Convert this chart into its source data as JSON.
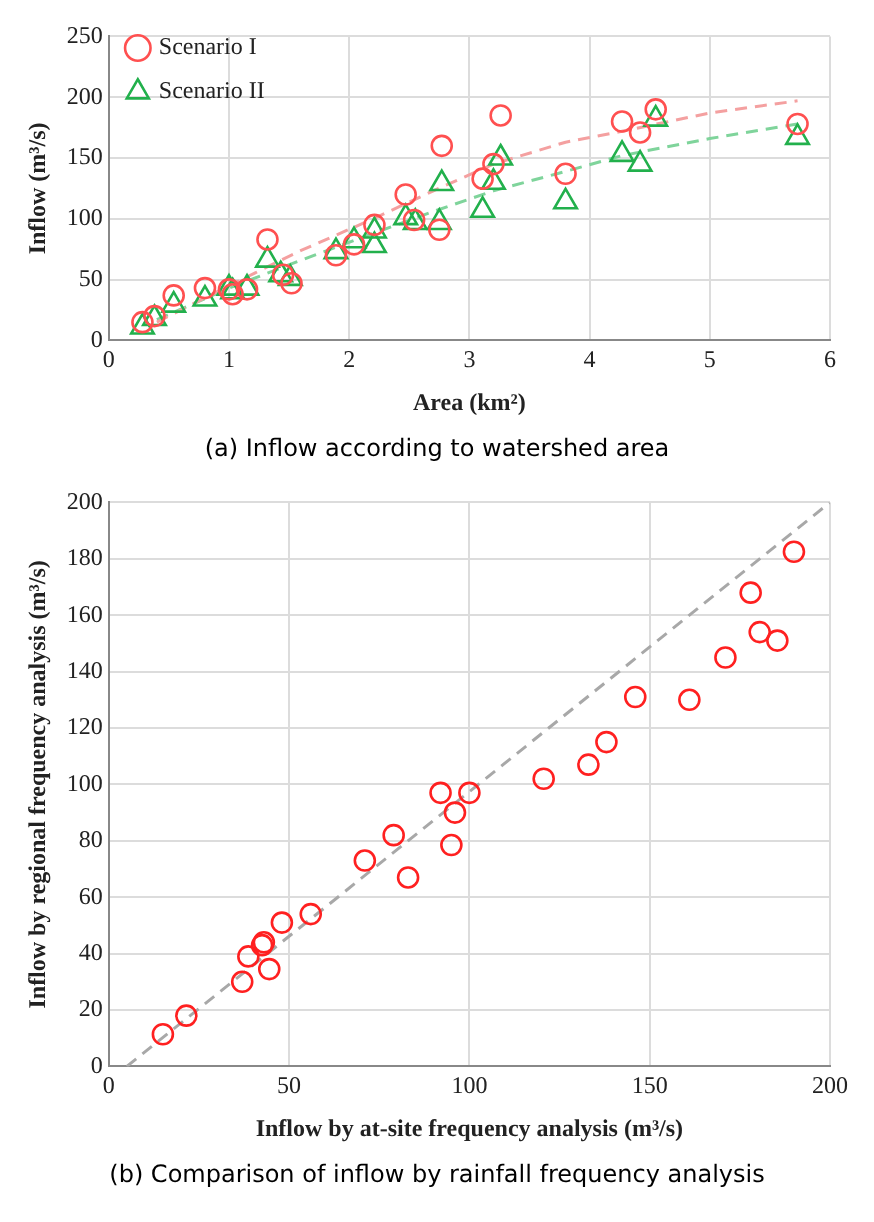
{
  "chart_data": [
    {
      "type": "scatter",
      "xlabel": "Area (km²)",
      "ylabel": "Inflow (m³/s)",
      "xlim": [
        0,
        6
      ],
      "xticks": [
        0,
        1,
        2,
        3,
        4,
        5,
        6
      ],
      "ylim": [
        0,
        250
      ],
      "yticks": [
        0,
        50,
        100,
        150,
        200,
        250
      ],
      "grid": true,
      "legend": "top left",
      "annotations": [
        "(a) Inflow according to watershed area"
      ],
      "series": [
        {
          "name": "Scenario I",
          "color": "#ff5050",
          "marker": "circle",
          "x": [
            0.28,
            0.38,
            0.54,
            0.8,
            1.0,
            1.03,
            1.15,
            1.32,
            1.45,
            1.52,
            1.89,
            2.04,
            2.21,
            2.47,
            2.54,
            2.75,
            2.77,
            3.11,
            3.2,
            3.26,
            3.8,
            4.27,
            4.42,
            4.55,
            5.73
          ],
          "values": [
            15,
            20,
            37,
            43,
            42,
            38,
            42,
            83,
            54,
            47,
            70,
            79,
            95,
            120,
            99,
            91,
            160,
            133,
            145,
            185,
            137,
            180,
            171,
            190,
            178
          ]
        },
        {
          "name": "Scenario II",
          "color": "#22b04c",
          "marker": "triangle",
          "x": [
            0.28,
            0.38,
            0.54,
            0.8,
            1.0,
            1.03,
            1.15,
            1.32,
            1.43,
            1.51,
            1.89,
            2.04,
            2.21,
            2.21,
            2.47,
            2.55,
            2.75,
            2.77,
            3.11,
            3.2,
            3.26,
            3.8,
            4.27,
            4.42,
            4.55,
            5.73
          ],
          "values": [
            11,
            18,
            29,
            34,
            43,
            40,
            43,
            66,
            54,
            51,
            73,
            82,
            90,
            78,
            101,
            97,
            97,
            129,
            107,
            130,
            150,
            114,
            153,
            145,
            182,
            167
          ]
        },
        {
          "type": "line",
          "color": "#f4a0a0",
          "marker": "none",
          "line_style": "dashed",
          "x": [
            0.4,
            1,
            1.6,
            2.2,
            2.7,
            3.2,
            3.8,
            4.27,
            5,
            5.73
          ],
          "values": [
            15,
            45,
            74,
            100,
            123,
            145,
            163,
            172,
            187,
            197
          ]
        },
        {
          "type": "line",
          "color": "#7fd49b",
          "marker": "none",
          "line_style": "dashed",
          "x": [
            0.4,
            1,
            1.6,
            2.2,
            2.7,
            3.2,
            3.8,
            4.27,
            5,
            5.73
          ],
          "values": [
            17,
            43,
            66,
            88,
            106,
            123,
            139,
            152,
            166,
            178
          ]
        }
      ]
    },
    {
      "type": "scatter",
      "xlabel": "Inflow by at-site frequency analysis (m³/s)",
      "ylabel": "Inflow by regional frequency analysis (m³/s)",
      "xlim": [
        0,
        200
      ],
      "xticks": [
        0,
        50,
        100,
        150,
        200
      ],
      "ylim": [
        0,
        200
      ],
      "yticks": [
        0,
        20,
        40,
        60,
        80,
        100,
        120,
        140,
        160,
        180,
        200
      ],
      "grid": true,
      "annotations": [
        "(b) Comparison of inflow by rainfall frequency analysis"
      ],
      "series": [
        {
          "color": "#ff2020",
          "marker": "circle",
          "x": [
            15,
            21.5,
            37,
            38.7,
            42.5,
            43,
            44.5,
            48,
            56,
            71,
            79,
            83,
            92,
            95,
            96,
            100,
            120.6,
            133,
            138,
            146,
            161,
            171,
            178,
            180.5,
            185.4,
            190
          ],
          "values": [
            11.4,
            18,
            30,
            39,
            43,
            44,
            34.5,
            51,
            54,
            73,
            82,
            67,
            97,
            78.5,
            90,
            97,
            102,
            107,
            115,
            131,
            130,
            145,
            168,
            154,
            151,
            182.5
          ]
        },
        {
          "type": "line",
          "color": "#a8a8a8",
          "marker": "none",
          "line_style": "dashed",
          "x": [
            5,
            200
          ],
          "values": [
            0,
            200
          ]
        }
      ]
    }
  ]
}
